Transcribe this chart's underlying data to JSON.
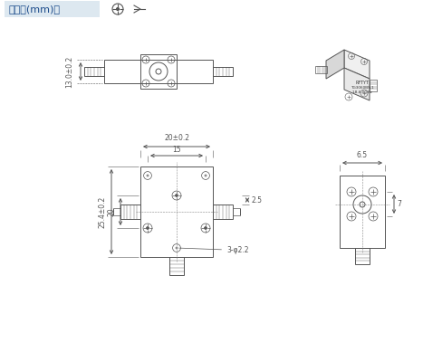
{
  "title_text": "外形图(mm)：",
  "title_bg_color": "#dde8f0",
  "title_text_color": "#1a4a8a",
  "drawing_line_color": "#555555",
  "dim_line_color": "#555555",
  "bg_color": "#ffffff",
  "dim_13": "13.0±0.2",
  "dim_20": "20±0.2",
  "dim_15": "15",
  "dim_25": "2.5",
  "dim_254": "25.4±0.2",
  "dim_20b": "20",
  "dim_hole": "3-φ2.2",
  "dim_65": "6.5",
  "dim_7": "7"
}
